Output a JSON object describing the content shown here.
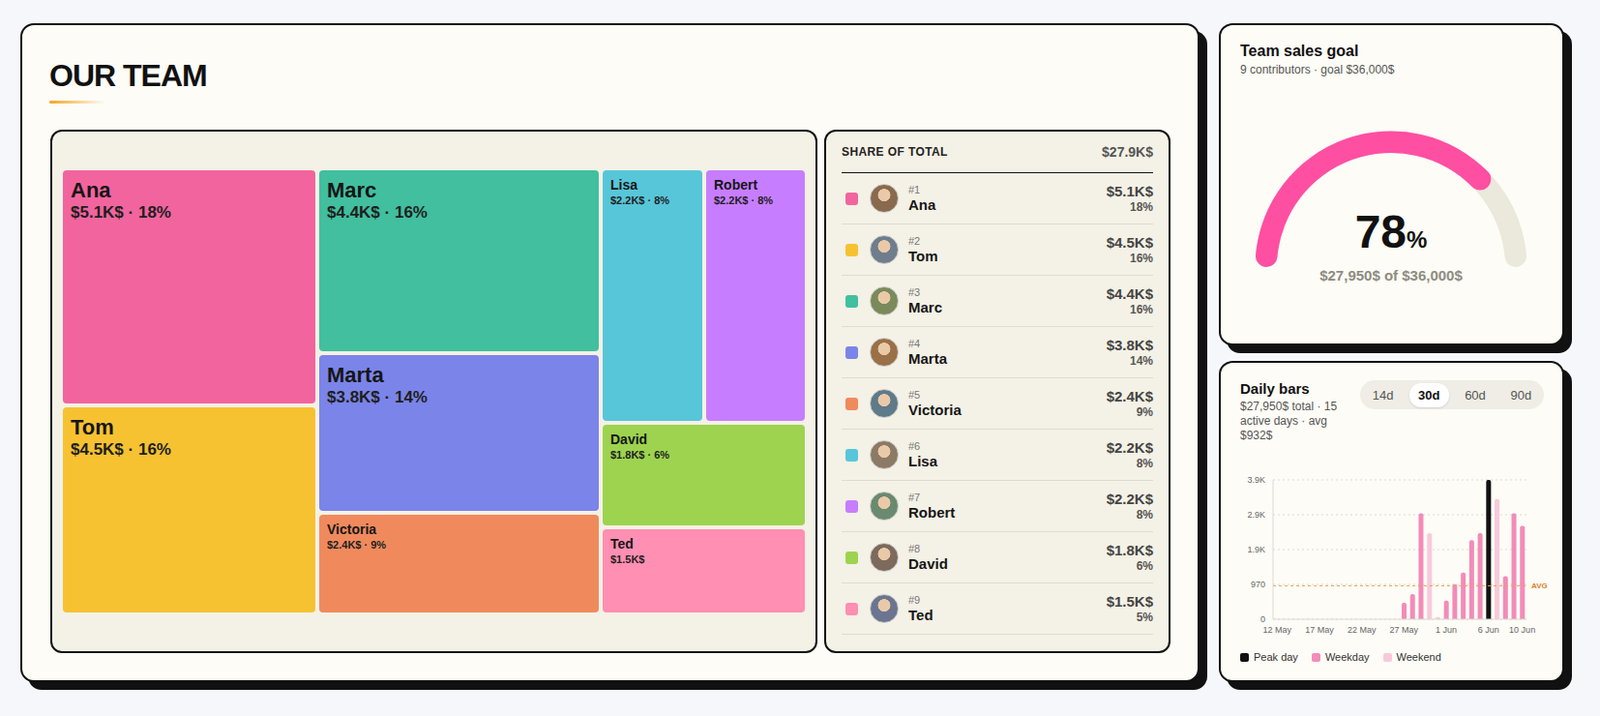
{
  "chart_data": [
    {
      "type": "treemap",
      "title": "OUR TEAM",
      "categories": [
        "Ana",
        "Tom",
        "Marc",
        "Marta",
        "Victoria",
        "Lisa",
        "Robert",
        "David",
        "Ted"
      ],
      "values": [
        5.1,
        4.5,
        4.4,
        3.8,
        2.4,
        2.2,
        2.2,
        1.8,
        1.5
      ],
      "value_labels": [
        "$5.1K$ · 18%",
        "$4.5K$ · 16%",
        "$4.4K$ · 16%",
        "$3.8K$ · 14%",
        "$2.4K$ · 9%",
        "$2.2K$ · 8%",
        "$2.2K$ · 8%",
        "$1.8K$ · 6%",
        "$1.5K$"
      ],
      "colors": [
        "#f2649e",
        "#f6c232",
        "#41bf9f",
        "#7b84e8",
        "#f08a5d",
        "#57c6d8",
        "#c77dff",
        "#9dd34f",
        "#ff8fb3"
      ]
    },
    {
      "type": "gauge",
      "title": "Team sales goal",
      "subtitle": "9 contributors · goal $36,000$",
      "value": 78,
      "unit": "%",
      "caption": "$27,950$ of $36,000$",
      "ylim": [
        0,
        100
      ],
      "color": "#ff4fa3"
    },
    {
      "type": "bar",
      "title": "Daily bars",
      "subtitle": "$27,950$ total · 15 active days · avg $932$",
      "range_options": [
        "14d",
        "30d",
        "60d",
        "90d"
      ],
      "selected_range": "30d",
      "categories": [
        "12 May",
        null,
        null,
        null,
        null,
        "17 May",
        null,
        null,
        null,
        null,
        "22 May",
        null,
        null,
        null,
        null,
        "27 May",
        null,
        null,
        null,
        null,
        "1 Jun",
        null,
        null,
        null,
        null,
        "6 Jun",
        null,
        null,
        null,
        "10 Jun"
      ],
      "values": [
        0,
        0,
        0,
        0,
        0,
        0,
        0,
        0,
        0,
        0,
        0,
        0,
        0,
        0,
        0,
        460,
        700,
        2950,
        2400,
        60,
        520,
        980,
        1300,
        2200,
        2400,
        3880,
        3350,
        1200,
        2950,
        2600
      ],
      "colors": [
        "#f28cb8",
        "#f28cb8",
        "#f28cb8",
        "#f28cb8",
        "#f9c9db",
        "#f9c9db",
        "#f28cb8",
        "#f28cb8",
        "#f28cb8",
        "#f28cb8",
        "#f28cb8",
        "#f9c9db",
        "#f9c9db",
        "#f28cb8",
        "#f28cb8",
        "#f28cb8",
        "#f28cb8",
        "#f28cb8",
        "#f9c9db",
        "#f9c9db",
        "#f28cb8",
        "#f28cb8",
        "#f28cb8",
        "#f28cb8",
        "#f28cb8",
        "#111111",
        "#f9c9db",
        "#f28cb8",
        "#f28cb8",
        "#f28cb8"
      ],
      "ylim": [
        0,
        3880
      ],
      "yticks": [
        0,
        970,
        {
          "value": 1940,
          "label": "1.9K"
        },
        {
          "value": 2910,
          "label": "2.9K"
        },
        {
          "value": 3880,
          "label": "3.9K"
        }
      ],
      "grid": true,
      "avg_line": {
        "value": 932,
        "label": "AVG"
      },
      "legend_entries": [
        {
          "name": "Peak day",
          "color": "#111111"
        },
        {
          "name": "Weekday",
          "color": "#f28cb8"
        },
        {
          "name": "Weekend",
          "color": "#f9c9db"
        }
      ],
      "legend": "bottom"
    }
  ],
  "share_table": {
    "title": "SHARE OF TOTAL",
    "total": "$27.9K$",
    "rows": [
      {
        "rank": "#1",
        "name": "Ana",
        "value": "$5.1K$",
        "share": "18%"
      },
      {
        "rank": "#2",
        "name": "Tom",
        "value": "$4.5K$",
        "share": "16%"
      },
      {
        "rank": "#3",
        "name": "Marc",
        "value": "$4.4K$",
        "share": "16%"
      },
      {
        "rank": "#4",
        "name": "Marta",
        "value": "$3.8K$",
        "share": "14%"
      },
      {
        "rank": "#5",
        "name": "Victoria",
        "value": "$2.4K$",
        "share": "9%"
      },
      {
        "rank": "#6",
        "name": "Lisa",
        "value": "$2.2K$",
        "share": "8%"
      },
      {
        "rank": "#7",
        "name": "Robert",
        "value": "$2.2K$",
        "share": "8%"
      },
      {
        "rank": "#8",
        "name": "David",
        "value": "$1.8K$",
        "share": "6%"
      },
      {
        "rank": "#9",
        "name": "Ted",
        "value": "$1.5K$",
        "share": "5%"
      }
    ]
  }
}
